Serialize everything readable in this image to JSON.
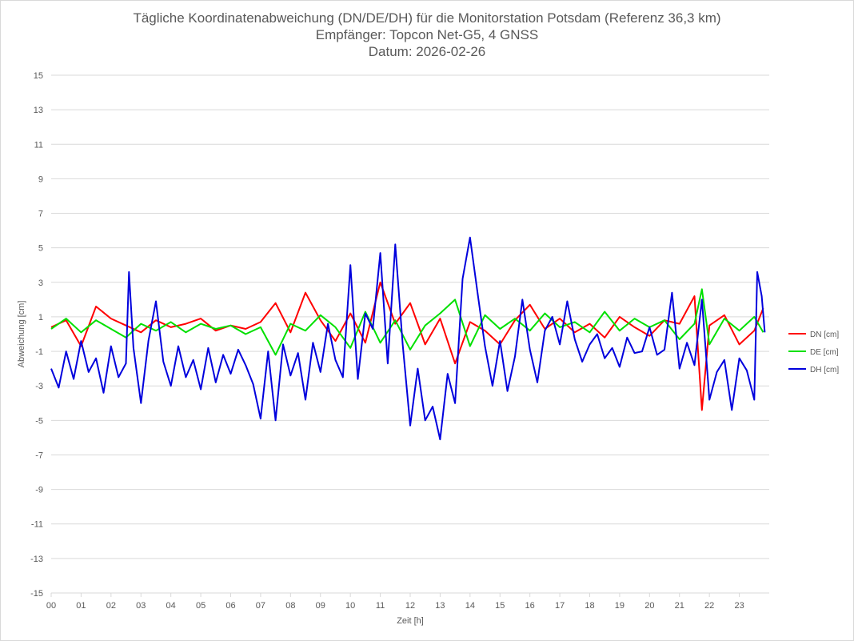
{
  "chart_data": {
    "type": "line",
    "title_lines": [
      "Tägliche Koordinatenabweichung (DN/DE/DH) für die Monitorstation Potsdam (Referenz 36,3 km)",
      "Empfänger: Topcon Net-G5, 4 GNSS",
      "Datum: 2026-02-26"
    ],
    "xlabel": "Zeit [h]",
    "ylabel": "Abweichung [cm]",
    "xlim": [
      0,
      24
    ],
    "ylim": [
      -15,
      15
    ],
    "y_ticks": [
      15,
      13,
      11,
      9,
      7,
      5,
      3,
      1,
      -1,
      -3,
      -5,
      -7,
      -9,
      -11,
      -13,
      -15
    ],
    "x_tick_labels": [
      "00",
      "01",
      "02",
      "03",
      "04",
      "05",
      "06",
      "07",
      "08",
      "09",
      "10",
      "11",
      "12",
      "13",
      "14",
      "15",
      "16",
      "17",
      "18",
      "19",
      "20",
      "21",
      "22",
      "23"
    ],
    "legend_position": "right",
    "series": [
      {
        "name": "DN [cm]",
        "color": "#ff0000",
        "x": [
          0,
          0.5,
          1,
          1.5,
          2,
          2.5,
          3,
          3.5,
          4,
          4.5,
          5,
          5.5,
          6,
          6.5,
          7,
          7.5,
          8,
          8.5,
          9,
          9.5,
          10,
          10.5,
          11,
          11.5,
          12,
          12.5,
          13,
          13.5,
          14,
          14.5,
          15,
          15.5,
          16,
          16.5,
          17,
          17.5,
          18,
          18.5,
          19,
          19.5,
          20,
          20.5,
          21,
          21.5,
          21.75,
          22,
          22.5,
          23,
          23.5,
          23.8
        ],
        "y": [
          0.4,
          0.8,
          -0.7,
          1.6,
          0.9,
          0.5,
          0.1,
          0.8,
          0.4,
          0.6,
          0.9,
          0.2,
          0.5,
          0.3,
          0.7,
          1.8,
          0.1,
          2.4,
          0.8,
          -0.4,
          1.2,
          -0.5,
          3.0,
          0.6,
          1.8,
          -0.6,
          0.9,
          -1.7,
          0.7,
          0.2,
          -0.6,
          0.8,
          1.7,
          0.3,
          0.9,
          0.1,
          0.6,
          -0.2,
          1.0,
          0.4,
          -0.1,
          0.8,
          0.6,
          2.2,
          -4.4,
          0.5,
          1.1,
          -0.6,
          0.2,
          1.5
        ]
      },
      {
        "name": "DE [cm]",
        "color": "#00e000",
        "x": [
          0,
          0.5,
          1,
          1.5,
          2,
          2.5,
          3,
          3.5,
          4,
          4.5,
          5,
          5.5,
          6,
          6.5,
          7,
          7.5,
          8,
          8.5,
          9,
          9.5,
          10,
          10.5,
          11,
          11.5,
          12,
          12.5,
          13,
          13.5,
          14,
          14.5,
          15,
          15.5,
          16,
          16.5,
          17,
          17.5,
          18,
          18.5,
          19,
          19.5,
          20,
          20.5,
          21,
          21.5,
          21.75,
          22,
          22.5,
          23,
          23.5,
          23.8
        ],
        "y": [
          0.3,
          0.9,
          0.1,
          0.8,
          0.3,
          -0.2,
          0.6,
          0.2,
          0.7,
          0.1,
          0.6,
          0.3,
          0.5,
          0.0,
          0.4,
          -1.2,
          0.6,
          0.2,
          1.1,
          0.4,
          -0.8,
          1.3,
          -0.5,
          0.8,
          -0.9,
          0.5,
          1.2,
          2.0,
          -0.7,
          1.1,
          0.3,
          0.9,
          0.2,
          1.2,
          0.4,
          0.7,
          0.1,
          1.3,
          0.2,
          0.9,
          0.4,
          0.8,
          -0.3,
          0.6,
          2.6,
          -0.6,
          0.9,
          0.2,
          1.0,
          0.1
        ]
      },
      {
        "name": "DH [cm]",
        "color": "#0000dd",
        "x": [
          0,
          0.25,
          0.5,
          0.75,
          1,
          1.25,
          1.5,
          1.75,
          2,
          2.25,
          2.5,
          2.6,
          2.75,
          3,
          3.25,
          3.5,
          3.75,
          4,
          4.25,
          4.5,
          4.75,
          5,
          5.25,
          5.5,
          5.75,
          6,
          6.25,
          6.5,
          6.75,
          7,
          7.25,
          7.5,
          7.75,
          8,
          8.25,
          8.5,
          8.75,
          9,
          9.25,
          9.5,
          9.75,
          10,
          10.25,
          10.5,
          10.75,
          11,
          11.25,
          11.5,
          11.75,
          12,
          12.25,
          12.5,
          12.75,
          13,
          13.25,
          13.5,
          13.75,
          14,
          14.25,
          14.5,
          14.75,
          15,
          15.25,
          15.5,
          15.75,
          16,
          16.25,
          16.5,
          16.75,
          17,
          17.25,
          17.5,
          17.75,
          18,
          18.25,
          18.5,
          18.75,
          19,
          19.25,
          19.5,
          19.75,
          20,
          20.25,
          20.5,
          20.75,
          21,
          21.25,
          21.5,
          21.75,
          22,
          22.25,
          22.5,
          22.75,
          23,
          23.25,
          23.5,
          23.6,
          23.75,
          23.85
        ],
        "y": [
          -2.0,
          -3.1,
          -1.0,
          -2.6,
          -0.4,
          -2.2,
          -1.4,
          -3.4,
          -0.7,
          -2.5,
          -1.7,
          3.6,
          -0.8,
          -4.0,
          -0.4,
          1.9,
          -1.6,
          -3.0,
          -0.7,
          -2.5,
          -1.5,
          -3.2,
          -0.8,
          -2.8,
          -1.2,
          -2.3,
          -0.9,
          -1.8,
          -2.9,
          -4.9,
          -1.0,
          -5.0,
          -0.6,
          -2.4,
          -1.1,
          -3.8,
          -0.5,
          -2.2,
          0.6,
          -1.5,
          -2.5,
          4.0,
          -2.6,
          1.2,
          0.3,
          4.7,
          -1.7,
          5.2,
          -0.6,
          -5.3,
          -2.0,
          -5.0,
          -4.2,
          -6.1,
          -2.3,
          -4.0,
          3.2,
          5.6,
          2.4,
          -0.7,
          -3.0,
          -0.4,
          -3.3,
          -1.3,
          2.0,
          -0.9,
          -2.8,
          0.2,
          1.0,
          -0.6,
          1.9,
          -0.3,
          -1.6,
          -0.6,
          0.0,
          -1.4,
          -0.8,
          -1.9,
          -0.2,
          -1.1,
          -1.0,
          0.4,
          -1.2,
          -0.9,
          2.4,
          -2.0,
          -0.5,
          -1.8,
          2.0,
          -3.8,
          -2.2,
          -1.5,
          -4.4,
          -1.4,
          -2.1,
          -3.8,
          3.6,
          2.2,
          0.1
        ]
      }
    ]
  }
}
